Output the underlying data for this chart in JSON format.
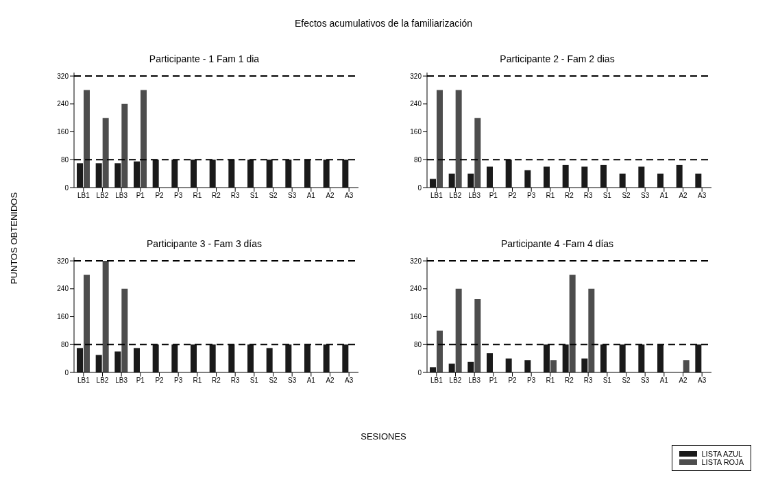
{
  "chart_data": [
    {
      "type": "bar",
      "title": "Participante - 1 Fam 1 dia",
      "ylabel": "PUNTOS OBTENIDOS",
      "annotations": [
        "Efectos acumulativos de la familiarización"
      ],
      "categories": [
        "LB1",
        "LB2",
        "LB3",
        "P1",
        "P2",
        "P3",
        "R1",
        "R2",
        "R3",
        "S1",
        "S2",
        "S3",
        "A1",
        "A2",
        "A3"
      ],
      "series": [
        {
          "color": "#1a1a1a",
          "values": [
            70,
            70,
            70,
            75,
            80,
            80,
            80,
            80,
            80,
            80,
            80,
            80,
            80,
            80,
            80
          ]
        },
        {
          "color": "#4d4d4d",
          "values": [
            280,
            200,
            240,
            280,
            null,
            null,
            null,
            null,
            null,
            null,
            null,
            null,
            null,
            null,
            null
          ]
        }
      ],
      "ylim": [
        0,
        330
      ],
      "yticks": [
        0,
        80,
        160,
        240,
        320
      ],
      "grid": false,
      "legend": false,
      "ref_lines": [
        {
          "axis": "y",
          "value": 80,
          "line_style": "dashed"
        },
        {
          "axis": "y",
          "value": 320,
          "line_style": "dashed"
        }
      ]
    },
    {
      "type": "bar",
      "title": "Participante 2 - Fam 2 dias",
      "categories": [
        "LB1",
        "LB2",
        "LB3",
        "P1",
        "P2",
        "P3",
        "R1",
        "R2",
        "R3",
        "S1",
        "S2",
        "S3",
        "A1",
        "A2",
        "A3"
      ],
      "series": [
        {
          "color": "#1a1a1a",
          "values": [
            25,
            40,
            40,
            60,
            80,
            50,
            60,
            65,
            60,
            65,
            40,
            60,
            40,
            65,
            40
          ]
        },
        {
          "color": "#4d4d4d",
          "values": [
            280,
            280,
            200,
            null,
            null,
            null,
            null,
            null,
            null,
            null,
            null,
            null,
            null,
            null,
            null
          ]
        }
      ],
      "ylim": [
        0,
        330
      ],
      "yticks": [
        0,
        80,
        160,
        240,
        320
      ],
      "grid": false,
      "legend": false,
      "ref_lines": [
        {
          "axis": "y",
          "value": 80,
          "line_style": "dashed"
        },
        {
          "axis": "y",
          "value": 320,
          "line_style": "dashed"
        }
      ]
    },
    {
      "type": "bar",
      "title": "Participante 3 - Fam 3 días",
      "xlabel": "SESIONES",
      "categories": [
        "LB1",
        "LB2",
        "LB3",
        "P1",
        "P2",
        "P3",
        "R1",
        "R2",
        "R3",
        "S1",
        "S2",
        "S3",
        "A1",
        "A2",
        "A3"
      ],
      "series": [
        {
          "color": "#1a1a1a",
          "values": [
            70,
            50,
            60,
            70,
            80,
            80,
            80,
            80,
            80,
            80,
            70,
            80,
            80,
            80,
            80
          ]
        },
        {
          "color": "#4d4d4d",
          "values": [
            280,
            320,
            240,
            null,
            null,
            null,
            null,
            null,
            null,
            null,
            null,
            null,
            null,
            null,
            null
          ]
        }
      ],
      "ylim": [
        0,
        330
      ],
      "yticks": [
        0,
        80,
        160,
        240,
        320
      ],
      "grid": false,
      "legend": false,
      "ref_lines": [
        {
          "axis": "y",
          "value": 80,
          "line_style": "dashed"
        },
        {
          "axis": "y",
          "value": 320,
          "line_style": "dashed"
        }
      ]
    },
    {
      "type": "bar",
      "title": "Participante 4 -Fam 4 días",
      "categories": [
        "LB1",
        "LB2",
        "LB3",
        "P1",
        "P2",
        "P3",
        "R1",
        "R2",
        "R3",
        "S1",
        "S2",
        "S3",
        "A1",
        "A2",
        "A3"
      ],
      "series": [
        {
          "name": "LISTA AZUL",
          "color": "#1a1a1a",
          "values": [
            15,
            25,
            30,
            55,
            40,
            35,
            80,
            80,
            40,
            80,
            80,
            80,
            80,
            null,
            80
          ]
        },
        {
          "name": "LISTA ROJA",
          "color": "#4d4d4d",
          "values": [
            120,
            240,
            210,
            null,
            null,
            null,
            35,
            280,
            240,
            null,
            null,
            null,
            null,
            35,
            null
          ]
        }
      ],
      "ylim": [
        0,
        330
      ],
      "yticks": [
        0,
        80,
        160,
        240,
        320
      ],
      "grid": false,
      "legend": "bottom right",
      "ref_lines": [
        {
          "axis": "y",
          "value": 80,
          "line_style": "dashed"
        },
        {
          "axis": "y",
          "value": 320,
          "line_style": "dashed"
        }
      ]
    }
  ]
}
